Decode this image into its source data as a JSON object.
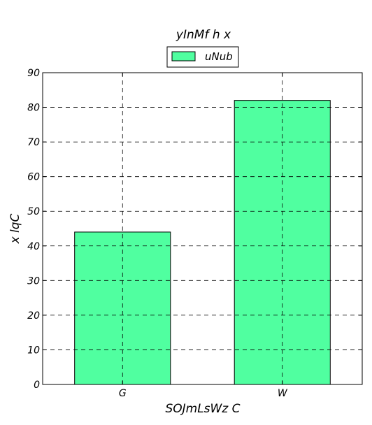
{
  "chart_data": {
    "type": "bar",
    "title": "yInMf h x",
    "xlabel": "SOJmLsWz C",
    "ylabel": "x lqC",
    "categories": [
      "G",
      "W"
    ],
    "series": [
      {
        "name": "uNub",
        "values": [
          44,
          82
        ],
        "color": "#50ffa0"
      }
    ],
    "ylim": [
      0,
      90
    ],
    "yticks": [
      0,
      10,
      20,
      30,
      40,
      50,
      60,
      70,
      80,
      90
    ],
    "grid": true,
    "legend_position": "top-center"
  }
}
